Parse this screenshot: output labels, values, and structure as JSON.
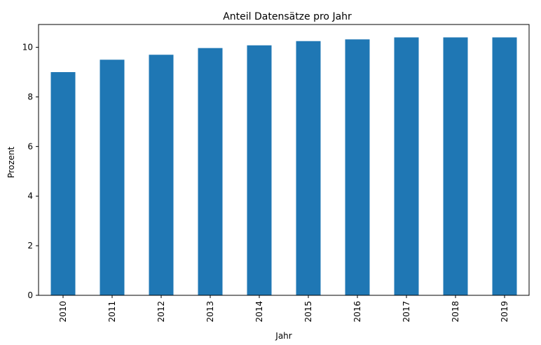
{
  "chart_data": {
    "type": "bar",
    "title": "Anteil Datensätze pro Jahr",
    "xlabel": "Jahr",
    "ylabel": "Prozent",
    "categories": [
      "2010",
      "2011",
      "2012",
      "2013",
      "2014",
      "2015",
      "2016",
      "2017",
      "2018",
      "2019"
    ],
    "values": [
      9.0,
      9.5,
      9.7,
      9.97,
      10.08,
      10.25,
      10.32,
      10.4,
      10.4,
      10.4
    ],
    "yticks": [
      "0",
      "2",
      "4",
      "6",
      "8",
      "10"
    ],
    "ylim": [
      0,
      10.92
    ],
    "grid": false,
    "legend": "none",
    "bar_color": "#1f77b4"
  }
}
